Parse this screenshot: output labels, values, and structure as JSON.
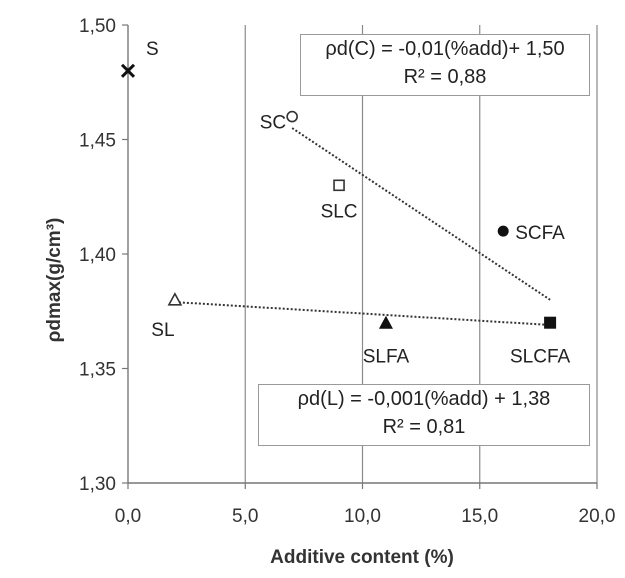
{
  "chart_data": {
    "type": "scatter",
    "xlabel": "Additive content (%)",
    "ylabel": "ρdmax(g/cm³)",
    "xlim": [
      0,
      20
    ],
    "ylim": [
      1.3,
      1.5
    ],
    "x_ticks": [
      "0,0",
      "5,0",
      "10,0",
      "15,0",
      "20,0"
    ],
    "y_ticks": [
      "1,30",
      "1,35",
      "1,40",
      "1,45",
      "1,50"
    ],
    "grid": "vertical",
    "points": [
      {
        "label": "S",
        "x": 0,
        "y": 1.48,
        "marker": "cross"
      },
      {
        "label": "SC",
        "x": 7,
        "y": 1.46,
        "marker": "circle-open"
      },
      {
        "label": "SLC",
        "x": 9,
        "y": 1.43,
        "marker": "square-open"
      },
      {
        "label": "SCFA",
        "x": 16,
        "y": 1.41,
        "marker": "circle-filled"
      },
      {
        "label": "SL",
        "x": 2,
        "y": 1.38,
        "marker": "triangle-open"
      },
      {
        "label": "SLFA",
        "x": 11,
        "y": 1.37,
        "marker": "triangle-filled"
      },
      {
        "label": "SLCFA",
        "x": 18,
        "y": 1.37,
        "marker": "square-filled"
      }
    ],
    "trendlines": [
      {
        "x": [
          7,
          18
        ],
        "y": [
          1.455,
          1.38
        ],
        "style": "dotted"
      },
      {
        "x": [
          2,
          18
        ],
        "y": [
          1.379,
          1.369
        ],
        "style": "dotted"
      }
    ],
    "annotations": {
      "eq_c_line1": "ρd(C) = -0,01(%add)+ 1,50",
      "eq_c_line2": "R² = 0,88",
      "eq_l_line1": "ρd(L) = -0,001(%add) + 1,38",
      "eq_l_line2": "R² = 0,81"
    }
  }
}
